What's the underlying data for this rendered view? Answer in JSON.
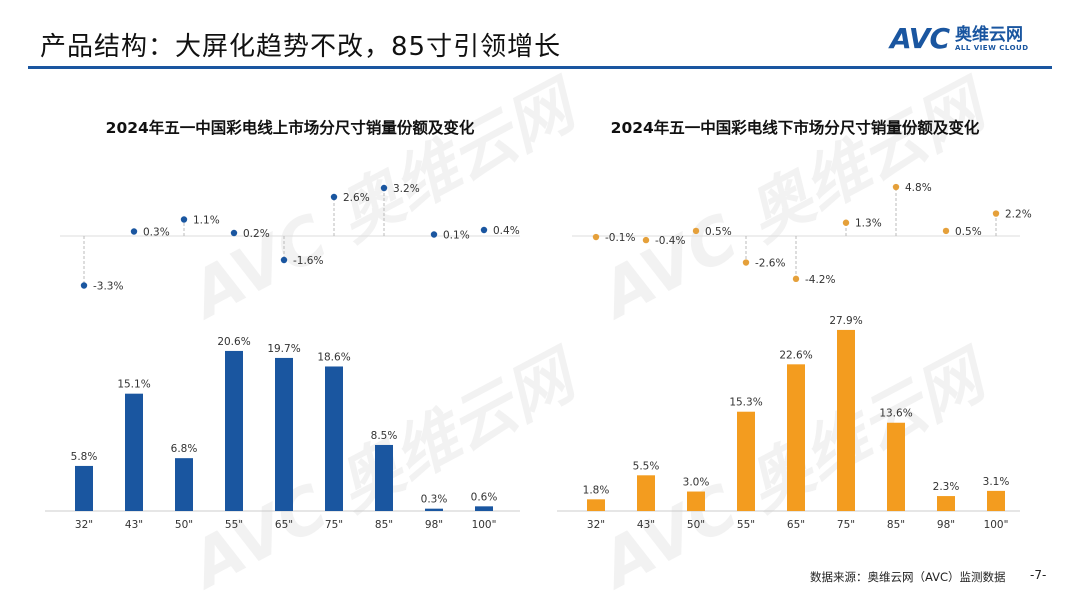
{
  "header": {
    "title": "产品结构：大屏化趋势不改，85寸引领增长",
    "logo_text": "AVC",
    "logo_cn": "奥维云网",
    "logo_en": "ALL VIEW CLOUD",
    "brand_color": "#1a56a0"
  },
  "footer": {
    "source": "数据来源：奥维云网（AVC）监测数据",
    "page": "-7-"
  },
  "chart_data": [
    {
      "type": "bar",
      "title": "2024年五一中国彩电线上市场分尺寸销量份额及变化",
      "color": "#1a56a0",
      "categories": [
        "32\"",
        "43\"",
        "50\"",
        "55\"",
        "65\"",
        "75\"",
        "85\"",
        "98\"",
        "100\""
      ],
      "values": [
        5.8,
        15.1,
        6.8,
        20.6,
        19.7,
        18.6,
        8.5,
        0.3,
        0.6
      ],
      "labels": [
        "5.8%",
        "15.1%",
        "6.8%",
        "20.6%",
        "19.7%",
        "18.6%",
        "8.5%",
        "0.3%",
        "0.6%"
      ],
      "change": {
        "type": "scatter",
        "values": [
          -3.3,
          0.3,
          1.1,
          0.2,
          -1.6,
          2.6,
          3.2,
          0.1,
          0.4
        ],
        "labels": [
          "-3.3%",
          "0.3%",
          "1.1%",
          "0.2%",
          "-1.6%",
          "2.6%",
          "3.2%",
          "0.1%",
          "0.4%"
        ]
      }
    },
    {
      "type": "bar",
      "title": "2024年五一中国彩电线下市场分尺寸销量份额及变化",
      "color": "#f39c1f",
      "categories": [
        "32\"",
        "43\"",
        "50\"",
        "55\"",
        "65\"",
        "75\"",
        "85\"",
        "98\"",
        "100\""
      ],
      "values": [
        1.8,
        5.5,
        3.0,
        15.3,
        22.6,
        27.9,
        13.6,
        2.3,
        3.1
      ],
      "labels": [
        "1.8%",
        "5.5%",
        "3.0%",
        "15.3%",
        "22.6%",
        "27.9%",
        "13.6%",
        "2.3%",
        "3.1%"
      ],
      "change": {
        "type": "scatter",
        "dot_color": "#e5a03a",
        "values": [
          -0.1,
          -0.4,
          0.5,
          -2.6,
          -4.2,
          1.3,
          4.8,
          0.5,
          2.2
        ],
        "labels": [
          "-0.1%",
          "-0.4%",
          "0.5%",
          "-2.6%",
          "-4.2%",
          "1.3%",
          "4.8%",
          "0.5%",
          "2.2%"
        ]
      }
    }
  ]
}
